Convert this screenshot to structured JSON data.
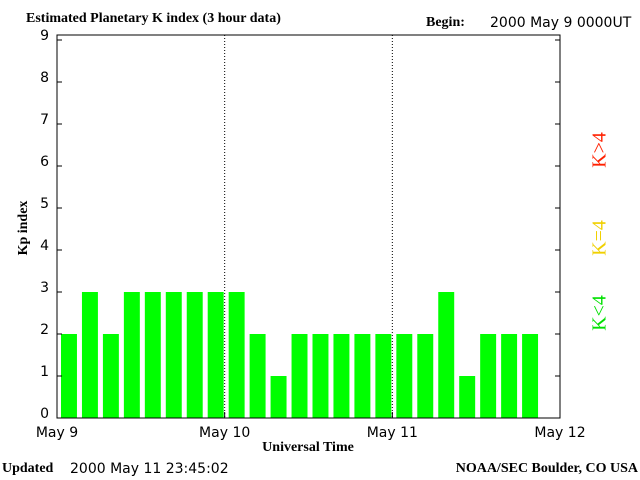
{
  "chart_data": {
    "type": "bar",
    "title": "Estimated Planetary K index (3 hour data)",
    "begin_label": "Begin:",
    "begin": "2000 May 9 0000UT",
    "ylabel": "Kp index",
    "xlabel": "Universal Time",
    "updated_label": "Updated",
    "updated": "2000 May 11 23:45:02",
    "source": "NOAA/SEC Boulder, CO USA",
    "values": [
      2,
      3,
      2,
      3,
      3,
      3,
      3,
      3,
      3,
      2,
      1,
      2,
      2,
      2,
      2,
      2,
      2,
      2,
      3,
      1,
      2,
      2,
      2,
      null
    ],
    "color": "#00ff00",
    "xticks": [
      "May 9",
      "May 10",
      "May 11",
      "May 12"
    ],
    "ylim": [
      0,
      9
    ],
    "yticks": [
      0,
      1,
      2,
      3,
      4,
      5,
      6,
      7,
      8,
      9
    ],
    "grid": true,
    "legend": [
      {
        "label": "K<4",
        "color": "#00e000"
      },
      {
        "label": "K=4",
        "color": "#f0d000"
      },
      {
        "label": "K>4",
        "color": "#ff2000"
      }
    ]
  }
}
